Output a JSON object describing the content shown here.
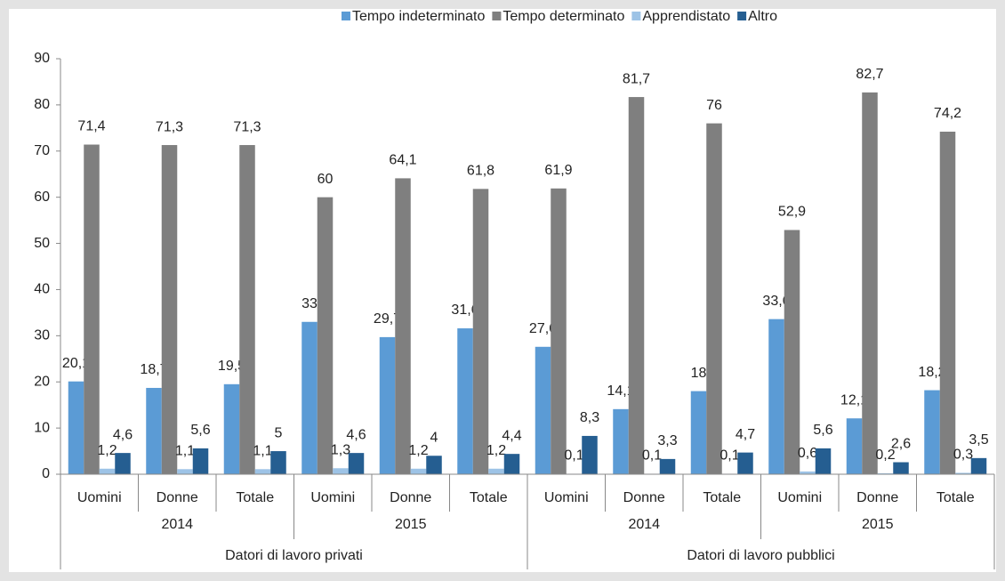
{
  "chart_data": {
    "type": "bar",
    "categories": [
      "Uomini",
      "Donne",
      "Totale",
      "Uomini",
      "Donne",
      "Totale",
      "Uomini",
      "Donne",
      "Totale",
      "Uomini",
      "Donne",
      "Totale"
    ],
    "category_levels": [
      [
        "2014",
        "2015",
        "2014",
        "2015"
      ],
      [
        "Datori di lavoro privati",
        "Datori di lavoro pubblici"
      ]
    ],
    "series": [
      {
        "name": "Tempo indeterminato",
        "color": "#5b9bd5",
        "values": [
          20.1,
          18.7,
          19.5,
          33,
          29.7,
          31.6,
          27.6,
          14.1,
          18,
          33.6,
          12.1,
          18.2
        ],
        "value_labels": [
          "20,1",
          "18,7",
          "19,5",
          "33",
          "29,7",
          "31,6",
          "27,6",
          "14,1",
          "18",
          "33,6",
          "12,1",
          "18,2"
        ]
      },
      {
        "name": "Tempo determinato",
        "color": "#7f7f7f",
        "values": [
          71.4,
          71.3,
          71.3,
          60,
          64.1,
          61.8,
          61.9,
          81.7,
          76,
          52.9,
          82.7,
          74.2
        ],
        "value_labels": [
          "71,4",
          "71,3",
          "71,3",
          "60",
          "64,1",
          "61,8",
          "61,9",
          "81,7",
          "76",
          "52,9",
          "82,7",
          "74,2"
        ]
      },
      {
        "name": "Apprendistato",
        "color": "#9dc3e6",
        "values": [
          1.2,
          1.1,
          1.1,
          1.3,
          1.2,
          1.2,
          0.1,
          0.1,
          0.1,
          0.6,
          0.2,
          0.3
        ],
        "value_labels": [
          "1,2",
          "1,1",
          "1,1",
          "1,3",
          "1,2",
          "1,2",
          "0,1",
          "0,1",
          "0,1",
          "0,6",
          "0,2",
          "0,3"
        ]
      },
      {
        "name": "Altro",
        "color": "#255e91",
        "values": [
          4.6,
          5.6,
          5,
          4.6,
          4,
          4.4,
          8.3,
          3.3,
          4.7,
          5.6,
          2.6,
          3.5
        ],
        "value_labels": [
          "4,6",
          "5,6",
          "5",
          "4,6",
          "4",
          "4,4",
          "8,3",
          "3,3",
          "4,7",
          "5,6",
          "2,6",
          "3,5"
        ]
      }
    ],
    "ylim": [
      0,
      90
    ],
    "yticks": [
      0,
      10,
      20,
      30,
      40,
      50,
      60,
      70,
      80,
      90
    ],
    "grid": false,
    "legend": "top"
  }
}
